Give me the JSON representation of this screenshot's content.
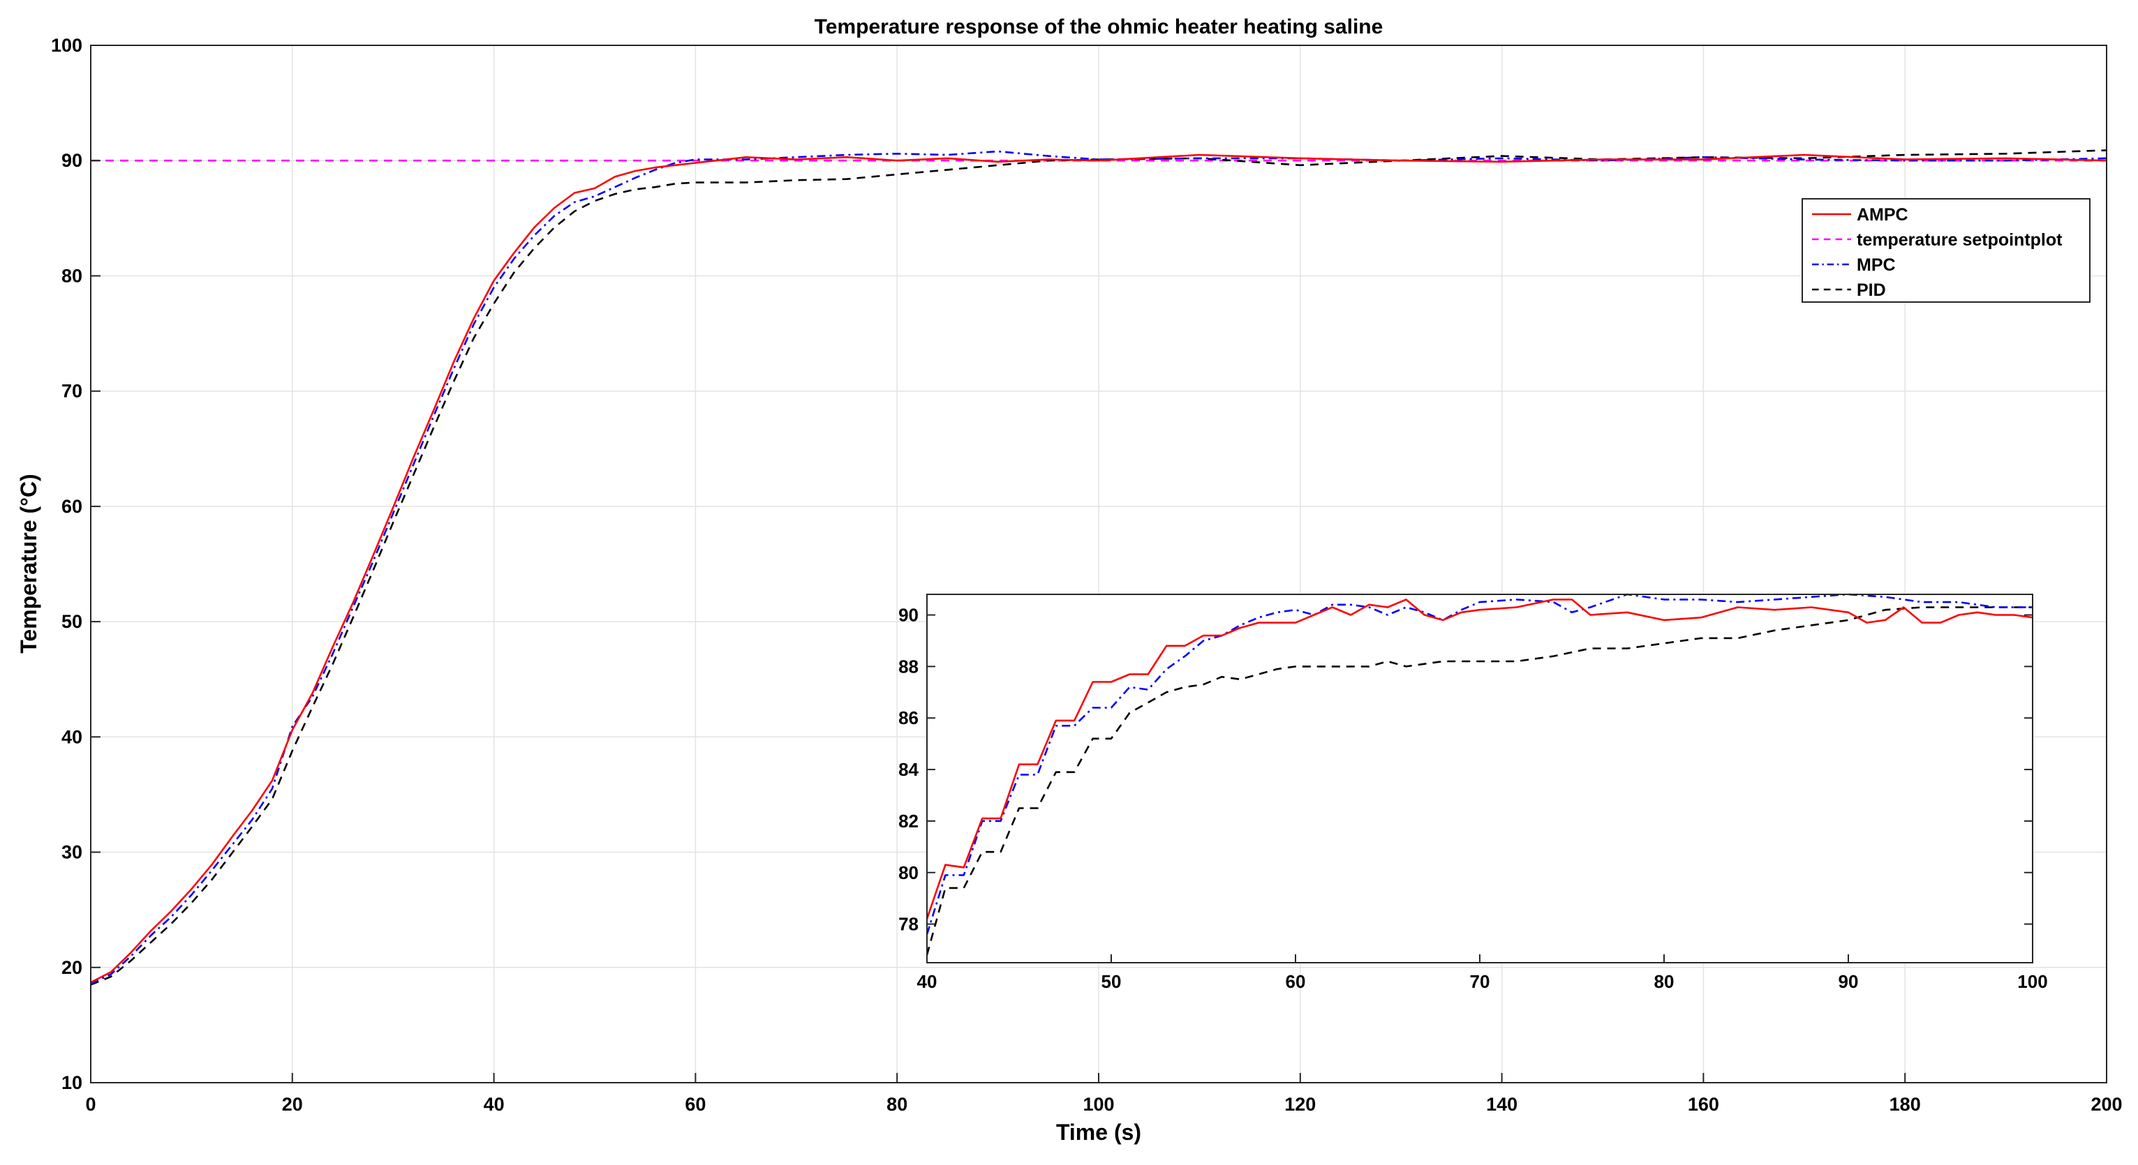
{
  "chart_data": {
    "type": "line",
    "title": "Temperature response of the ohmic heater heating saline",
    "xlabel": "Time (s)",
    "ylabel": "Temperature (°C)",
    "xlim": [
      0,
      200
    ],
    "ylim": [
      10,
      100
    ],
    "xticks": [
      "0",
      "20",
      "40",
      "60",
      "80",
      "100",
      "120",
      "140",
      "160",
      "180",
      "200"
    ],
    "yticks": [
      "10",
      "20",
      "30",
      "40",
      "50",
      "60",
      "70",
      "80",
      "90",
      "100"
    ],
    "grid": true,
    "legend_position": "top-right",
    "legend": [
      "AMPC",
      "temperature setpointplot",
      "MPC",
      "PID"
    ],
    "setpoint": 90,
    "series": [
      {
        "name": "AMPC",
        "color": "#ff0000",
        "style": "solid",
        "x": [
          0,
          2,
          4,
          6,
          8,
          10,
          12,
          14,
          16,
          18,
          20,
          22,
          24,
          26,
          28,
          30,
          32,
          34,
          36,
          38,
          40,
          42,
          44,
          46,
          48,
          50,
          52,
          54,
          56,
          58,
          60,
          65,
          70,
          75,
          80,
          85,
          90,
          95,
          100,
          110,
          120,
          130,
          140,
          150,
          160,
          170,
          180,
          190,
          200
        ],
        "y": [
          18.7,
          19.6,
          21.3,
          23.2,
          24.9,
          26.8,
          28.9,
          31.3,
          33.6,
          36.2,
          40.6,
          43.8,
          47.8,
          51.6,
          55.7,
          59.9,
          64.2,
          68.3,
          72.5,
          76.3,
          79.6,
          82.0,
          84.2,
          85.9,
          87.2,
          87.6,
          88.6,
          89.1,
          89.4,
          89.6,
          89.8,
          90.3,
          90.1,
          90.3,
          90.0,
          90.2,
          89.9,
          90.1,
          90.0,
          90.5,
          90.2,
          90.0,
          89.9,
          90.1,
          90.1,
          90.5,
          90.1,
          90.2,
          90.0
        ]
      },
      {
        "name": "temperature setpointplot",
        "color": "#ff00ff",
        "style": "dashed",
        "x": [
          0,
          200
        ],
        "y": [
          90,
          90
        ]
      },
      {
        "name": "MPC",
        "color": "#0000ff",
        "style": "dashdot",
        "x": [
          0,
          2,
          4,
          6,
          8,
          10,
          12,
          14,
          16,
          18,
          20,
          22,
          24,
          26,
          28,
          30,
          32,
          34,
          36,
          38,
          40,
          42,
          44,
          46,
          48,
          50,
          52,
          54,
          56,
          58,
          60,
          65,
          70,
          75,
          80,
          85,
          90,
          95,
          100,
          110,
          120,
          130,
          140,
          150,
          160,
          170,
          180,
          190,
          200
        ],
        "y": [
          18.6,
          19.4,
          21.0,
          22.8,
          24.4,
          26.3,
          28.4,
          30.6,
          32.8,
          35.5,
          40.9,
          43.5,
          47.2,
          51.2,
          55.2,
          59.4,
          63.6,
          67.8,
          71.9,
          75.8,
          79.0,
          81.5,
          83.5,
          85.2,
          86.4,
          86.9,
          87.7,
          88.5,
          89.2,
          89.8,
          90.1,
          90.1,
          90.3,
          90.5,
          90.6,
          90.5,
          90.8,
          90.4,
          90.1,
          90.2,
          90.2,
          90.0,
          90.2,
          90.0,
          90.3,
          90.1,
          90.0,
          90.0,
          90.2
        ]
      },
      {
        "name": "PID",
        "color": "#000000",
        "style": "dashed",
        "x": [
          0,
          2,
          4,
          6,
          8,
          10,
          12,
          14,
          16,
          18,
          20,
          22,
          24,
          26,
          28,
          30,
          32,
          34,
          36,
          38,
          40,
          42,
          44,
          46,
          48,
          50,
          52,
          54,
          56,
          58,
          60,
          65,
          70,
          75,
          80,
          85,
          90,
          95,
          100,
          110,
          120,
          130,
          140,
          150,
          160,
          170,
          180,
          190,
          200
        ],
        "y": [
          18.5,
          19.2,
          20.6,
          22.2,
          23.8,
          25.6,
          27.6,
          29.9,
          32.2,
          34.6,
          38.8,
          42.6,
          46.3,
          50.3,
          54.4,
          58.6,
          62.7,
          66.8,
          70.8,
          74.6,
          77.6,
          80.3,
          82.4,
          84.2,
          85.6,
          86.5,
          87.1,
          87.5,
          87.7,
          88.0,
          88.1,
          88.1,
          88.3,
          88.4,
          88.8,
          89.2,
          89.6,
          90.0,
          90.1,
          90.2,
          89.6,
          90.0,
          90.4,
          90.1,
          90.3,
          90.2,
          90.5,
          90.6,
          90.9
        ]
      }
    ],
    "inset": {
      "xlim": [
        40,
        100
      ],
      "ylim": [
        76.5,
        90.8
      ],
      "xticks": [
        "40",
        "50",
        "60",
        "70",
        "80",
        "90",
        "100"
      ],
      "yticks": [
        "78",
        "80",
        "82",
        "84",
        "86",
        "88",
        "90"
      ],
      "series": [
        {
          "name": "AMPC",
          "x": [
            40,
            41,
            42,
            43,
            44,
            45,
            46,
            47,
            48,
            49,
            50,
            51,
            52,
            53,
            54,
            55,
            56,
            57,
            58,
            59,
            60,
            61,
            62,
            63,
            64,
            65,
            66,
            67,
            68,
            69,
            70,
            72,
            74,
            75,
            76,
            78,
            80,
            82,
            84,
            86,
            88,
            90,
            91,
            92,
            93,
            94,
            95,
            96,
            97,
            98,
            99,
            100
          ],
          "y": [
            78.2,
            80.3,
            80.2,
            82.1,
            82.1,
            84.2,
            84.2,
            85.9,
            85.9,
            87.4,
            87.4,
            87.7,
            87.7,
            88.8,
            88.8,
            89.2,
            89.2,
            89.5,
            89.7,
            89.7,
            89.7,
            90.0,
            90.3,
            90.0,
            90.4,
            90.3,
            90.6,
            90.0,
            89.8,
            90.1,
            90.2,
            90.3,
            90.6,
            90.6,
            90.0,
            90.1,
            89.8,
            89.9,
            90.3,
            90.2,
            90.3,
            90.1,
            89.7,
            89.8,
            90.3,
            89.7,
            89.7,
            90.0,
            90.1,
            90.0,
            90.0,
            89.9
          ]
        },
        {
          "name": "MPC",
          "x": [
            40,
            41,
            42,
            43,
            44,
            45,
            46,
            47,
            48,
            49,
            50,
            51,
            52,
            53,
            54,
            55,
            56,
            57,
            58,
            59,
            60,
            61,
            62,
            63,
            64,
            65,
            66,
            67,
            68,
            69,
            70,
            72,
            74,
            75,
            76,
            78,
            80,
            82,
            84,
            86,
            88,
            90,
            92,
            94,
            96,
            98,
            100
          ],
          "y": [
            77.6,
            79.9,
            79.9,
            82.0,
            82.0,
            83.8,
            83.8,
            85.7,
            85.7,
            86.4,
            86.4,
            87.2,
            87.1,
            87.9,
            88.4,
            89.0,
            89.2,
            89.6,
            89.9,
            90.1,
            90.2,
            90.0,
            90.4,
            90.4,
            90.3,
            90.0,
            90.3,
            90.1,
            89.8,
            90.2,
            90.5,
            90.6,
            90.5,
            90.1,
            90.3,
            90.8,
            90.6,
            90.6,
            90.5,
            90.6,
            90.7,
            90.8,
            90.7,
            90.5,
            90.5,
            90.3,
            90.3
          ]
        },
        {
          "name": "PID",
          "x": [
            40,
            41,
            42,
            43,
            44,
            45,
            46,
            47,
            48,
            49,
            50,
            51,
            52,
            53,
            54,
            55,
            56,
            57,
            58,
            59,
            60,
            62,
            64,
            65,
            66,
            68,
            70,
            72,
            74,
            76,
            78,
            80,
            82,
            84,
            86,
            88,
            90,
            92,
            94,
            96,
            98,
            100
          ],
          "y": [
            76.8,
            79.4,
            79.4,
            80.8,
            80.8,
            82.5,
            82.5,
            83.9,
            83.9,
            85.2,
            85.2,
            86.2,
            86.6,
            87.0,
            87.2,
            87.3,
            87.6,
            87.5,
            87.7,
            87.9,
            88.0,
            88.0,
            88.0,
            88.2,
            88.0,
            88.2,
            88.2,
            88.2,
            88.4,
            88.7,
            88.7,
            88.9,
            89.1,
            89.1,
            89.4,
            89.6,
            89.8,
            90.2,
            90.3,
            90.3,
            90.3,
            90.3
          ]
        }
      ]
    }
  }
}
